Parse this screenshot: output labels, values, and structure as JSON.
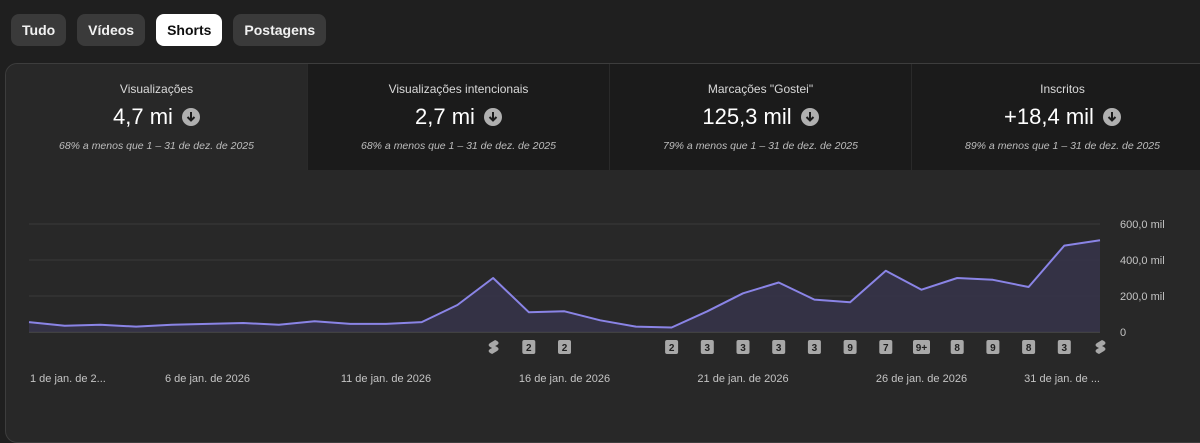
{
  "tabs": [
    {
      "label": "Tudo",
      "active": false
    },
    {
      "label": "Vídeos",
      "active": false
    },
    {
      "label": "Shorts",
      "active": true
    },
    {
      "label": "Postagens",
      "active": false
    }
  ],
  "metrics": [
    {
      "label": "Visualizações",
      "value": "4,7 mi",
      "comparison": "68% a menos que 1 – 31 de dez. de 2025",
      "icon": "arrow-down-circle-icon"
    },
    {
      "label": "Visualizações intencionais",
      "value": "2,7 mi",
      "comparison": "68% a menos que 1 – 31 de dez. de 2025",
      "icon": "arrow-down-circle-icon"
    },
    {
      "label": "Marcações \"Gostei\"",
      "value": "125,3 mil",
      "comparison": "79% a menos que 1 – 31 de dez. de 2025",
      "icon": "arrow-down-circle-icon"
    },
    {
      "label": "Inscritos",
      "value": "+18,4 mil",
      "comparison": "89% a menos que 1 – 31 de dez. de 2025",
      "icon": "arrow-down-circle-icon"
    }
  ],
  "colors": {
    "line": "#8a84e6",
    "area": "#36344a",
    "grid": "#3a3a3a",
    "badge": "#a8a8a8"
  },
  "chart_data": {
    "type": "area",
    "title": "Visualizações",
    "x": [
      "1 jan",
      "2 jan",
      "3 jan",
      "4 jan",
      "5 jan",
      "6 jan",
      "7 jan",
      "8 jan",
      "9 jan",
      "10 jan",
      "11 jan",
      "12 jan",
      "13 jan",
      "14 jan",
      "15 jan",
      "16 jan",
      "17 jan",
      "18 jan",
      "19 jan",
      "20 jan",
      "21 jan",
      "22 jan",
      "23 jan",
      "24 jan",
      "25 jan",
      "26 jan",
      "27 jan",
      "28 jan",
      "29 jan",
      "30 jan",
      "31 jan"
    ],
    "values": [
      55000,
      35000,
      40000,
      30000,
      40000,
      45000,
      50000,
      40000,
      60000,
      45000,
      45000,
      55000,
      150000,
      300000,
      110000,
      115000,
      65000,
      30000,
      25000,
      115000,
      215000,
      275000,
      180000,
      165000,
      340000,
      235000,
      300000,
      290000,
      250000,
      480000,
      510000
    ],
    "ylim": [
      0,
      600000
    ],
    "yticks": [
      "600,0 mil",
      "400,0 mil",
      "200,0 mil",
      "0"
    ],
    "ytick_values": [
      600000,
      400000,
      200000,
      0
    ],
    "xtick_labels": [
      "1 de jan. de 2...",
      "6 de jan. de 2026",
      "11 de jan. de 2026",
      "16 de jan. de 2026",
      "21 de jan. de 2026",
      "26 de jan. de 2026",
      "31 de jan. de ..."
    ],
    "xtick_index": [
      0,
      5,
      10,
      15,
      20,
      25,
      30
    ],
    "markers": [
      {
        "index": 13,
        "label": "shorts-icon"
      },
      {
        "index": 14,
        "label": "2"
      },
      {
        "index": 15,
        "label": "2"
      },
      {
        "index": 18,
        "label": "2"
      },
      {
        "index": 19,
        "label": "3"
      },
      {
        "index": 20,
        "label": "3"
      },
      {
        "index": 21,
        "label": "3"
      },
      {
        "index": 22,
        "label": "3"
      },
      {
        "index": 23,
        "label": "9"
      },
      {
        "index": 24,
        "label": "7"
      },
      {
        "index": 25,
        "label": "9+"
      },
      {
        "index": 26,
        "label": "8"
      },
      {
        "index": 27,
        "label": "9"
      },
      {
        "index": 28,
        "label": "8"
      },
      {
        "index": 29,
        "label": "3"
      },
      {
        "index": 30,
        "label": "shorts-icon"
      }
    ]
  }
}
